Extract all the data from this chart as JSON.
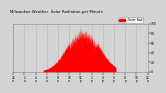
{
  "bar_color": "#ff0000",
  "background_color": "#d4d4d4",
  "plot_bg_color": "#d4d4d4",
  "grid_color": "#aaaaaa",
  "text_color": "#000000",
  "ylim": [
    0,
    100
  ],
  "xlim": [
    0,
    1440
  ],
  "peak_minute": 750,
  "peak_value": 95,
  "legend_label": "Solar Rad",
  "legend_color": "#ff0000",
  "num_minutes": 1440,
  "daylight_start": 320,
  "daylight_end": 1100
}
